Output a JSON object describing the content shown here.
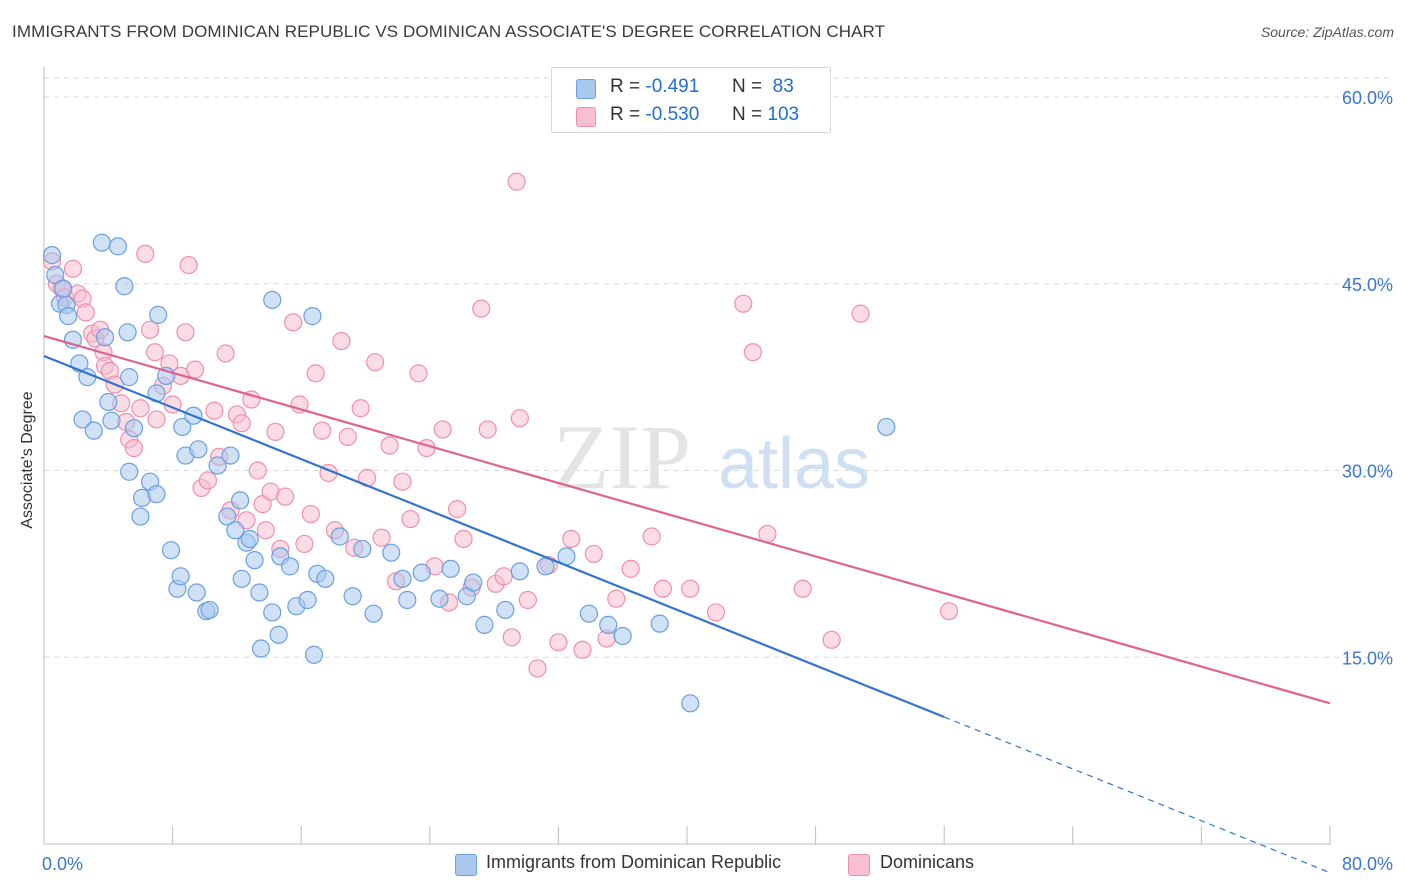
{
  "title": "IMMIGRANTS FROM DOMINICAN REPUBLIC VS DOMINICAN ASSOCIATE'S DEGREE CORRELATION CHART",
  "source": "Source: ZipAtlas.com",
  "watermark": {
    "zip": "ZIP",
    "atlas": "atlas"
  },
  "colors": {
    "blue_fill": "#a9c8ee",
    "blue_stroke": "#6a9fe0",
    "blue_line": "#2f74d0",
    "pink_fill": "#f7bfd0",
    "pink_stroke": "#ef8fb0",
    "pink_line": "#e0638e",
    "axis_label": "#3b78cc",
    "grid": "#d8d8d8"
  },
  "legend": {
    "rows": [
      {
        "r_label": "R =",
        "r_value": "-0.491",
        "n_label": "N =",
        "n_value": "83"
      },
      {
        "r_label": "R =",
        "r_value": "-0.530",
        "n_label": "N =",
        "n_value": "103"
      }
    ]
  },
  "bottom_legend": [
    "Immigrants from Dominican Republic",
    "Dominicans"
  ],
  "chart_data": {
    "type": "scatter",
    "title": "IMMIGRANTS FROM DOMINICAN REPUBLIC VS DOMINICAN ASSOCIATE'S DEGREE CORRELATION CHART",
    "xlabel": "",
    "ylabel": "Associate's Degree",
    "xlim": [
      0,
      80
    ],
    "ylim": [
      0,
      60
    ],
    "x_tick_labels": [
      "0.0%",
      "80.0%"
    ],
    "y_ticks": [
      15,
      30,
      45,
      60
    ],
    "y_tick_labels": [
      "15.0%",
      "30.0%",
      "45.0%",
      "60.0%"
    ],
    "grid": true,
    "legend_position": "top-center",
    "series": [
      {
        "name": "Immigrants from Dominican Republic",
        "color": "#a9c8ee",
        "r": -0.491,
        "n": 83,
        "trend": {
          "x0": 0,
          "y0": 39.2,
          "x1": 56,
          "y1": 10.2,
          "dash_to_x": 80,
          "dash_to_y": -2.3
        },
        "points": [
          [
            0.5,
            47.3
          ],
          [
            0.7,
            45.7
          ],
          [
            1.0,
            43.4
          ],
          [
            1.2,
            44.6
          ],
          [
            1.4,
            43.3
          ],
          [
            1.5,
            42.4
          ],
          [
            1.8,
            40.5
          ],
          [
            2.2,
            38.6
          ],
          [
            2.7,
            37.5
          ],
          [
            2.4,
            34.1
          ],
          [
            3.1,
            33.2
          ],
          [
            3.6,
            48.3
          ],
          [
            3.8,
            40.7
          ],
          [
            4.0,
            35.5
          ],
          [
            4.2,
            34.0
          ],
          [
            4.6,
            48.0
          ],
          [
            5.0,
            44.8
          ],
          [
            5.2,
            41.1
          ],
          [
            5.3,
            37.5
          ],
          [
            5.6,
            33.4
          ],
          [
            5.3,
            29.9
          ],
          [
            6.0,
            26.3
          ],
          [
            6.1,
            27.8
          ],
          [
            6.6,
            29.1
          ],
          [
            7.1,
            42.5
          ],
          [
            7.0,
            36.2
          ],
          [
            7.0,
            28.1
          ],
          [
            7.6,
            37.6
          ],
          [
            7.9,
            23.6
          ],
          [
            8.3,
            20.5
          ],
          [
            8.6,
            33.5
          ],
          [
            8.5,
            21.5
          ],
          [
            8.8,
            31.2
          ],
          [
            9.3,
            34.4
          ],
          [
            9.6,
            31.7
          ],
          [
            9.5,
            20.2
          ],
          [
            10.1,
            18.7
          ],
          [
            10.3,
            18.8
          ],
          [
            10.8,
            30.4
          ],
          [
            11.4,
            26.3
          ],
          [
            11.6,
            31.2
          ],
          [
            11.9,
            25.2
          ],
          [
            12.2,
            27.6
          ],
          [
            12.6,
            24.2
          ],
          [
            12.3,
            21.3
          ],
          [
            12.8,
            24.5
          ],
          [
            13.1,
            22.8
          ],
          [
            13.4,
            20.2
          ],
          [
            13.5,
            15.7
          ],
          [
            14.2,
            18.6
          ],
          [
            14.6,
            16.8
          ],
          [
            14.7,
            23.1
          ],
          [
            15.3,
            22.3
          ],
          [
            15.7,
            19.1
          ],
          [
            16.4,
            19.6
          ],
          [
            16.8,
            15.2
          ],
          [
            17.0,
            21.7
          ],
          [
            17.5,
            21.3
          ],
          [
            18.4,
            24.7
          ],
          [
            19.2,
            19.9
          ],
          [
            19.8,
            23.7
          ],
          [
            20.5,
            18.5
          ],
          [
            21.6,
            23.4
          ],
          [
            22.3,
            21.3
          ],
          [
            22.6,
            19.6
          ],
          [
            23.5,
            21.8
          ],
          [
            24.6,
            19.7
          ],
          [
            25.3,
            22.1
          ],
          [
            26.3,
            19.9
          ],
          [
            26.7,
            21.0
          ],
          [
            27.4,
            17.6
          ],
          [
            28.7,
            18.8
          ],
          [
            29.6,
            21.9
          ],
          [
            31.2,
            22.3
          ],
          [
            32.5,
            23.1
          ],
          [
            33.9,
            18.5
          ],
          [
            35.1,
            17.6
          ],
          [
            36.0,
            16.7
          ],
          [
            38.3,
            17.7
          ],
          [
            40.2,
            11.3
          ],
          [
            52.4,
            33.5
          ],
          [
            16.7,
            42.4
          ],
          [
            14.2,
            43.7
          ]
        ]
      },
      {
        "name": "Dominicans",
        "color": "#f7bfd0",
        "r": -0.53,
        "n": 103,
        "trend": {
          "x0": 0,
          "y0": 40.8,
          "x1": 80,
          "y1": 11.3
        },
        "points": [
          [
            0.5,
            46.8
          ],
          [
            0.8,
            45.0
          ],
          [
            1.1,
            44.6
          ],
          [
            1.3,
            43.9
          ],
          [
            1.8,
            46.2
          ],
          [
            2.1,
            44.2
          ],
          [
            2.4,
            43.8
          ],
          [
            2.6,
            42.7
          ],
          [
            3.0,
            41.0
          ],
          [
            3.2,
            40.6
          ],
          [
            3.5,
            41.3
          ],
          [
            3.7,
            39.5
          ],
          [
            3.8,
            38.4
          ],
          [
            4.1,
            38.0
          ],
          [
            4.4,
            36.9
          ],
          [
            4.8,
            35.4
          ],
          [
            5.1,
            33.9
          ],
          [
            5.3,
            32.5
          ],
          [
            5.6,
            31.8
          ],
          [
            6.0,
            35.0
          ],
          [
            6.3,
            47.4
          ],
          [
            6.6,
            41.3
          ],
          [
            6.9,
            39.5
          ],
          [
            7.0,
            34.1
          ],
          [
            7.4,
            36.8
          ],
          [
            7.8,
            38.6
          ],
          [
            8.0,
            35.3
          ],
          [
            8.5,
            37.6
          ],
          [
            8.8,
            41.1
          ],
          [
            9.0,
            46.5
          ],
          [
            9.4,
            38.1
          ],
          [
            9.8,
            28.6
          ],
          [
            10.2,
            29.2
          ],
          [
            10.6,
            34.8
          ],
          [
            10.9,
            31.1
          ],
          [
            11.3,
            39.4
          ],
          [
            11.6,
            26.8
          ],
          [
            12.0,
            34.5
          ],
          [
            12.3,
            33.8
          ],
          [
            12.6,
            26.0
          ],
          [
            12.9,
            35.7
          ],
          [
            13.3,
            30.0
          ],
          [
            13.6,
            27.3
          ],
          [
            13.8,
            25.2
          ],
          [
            14.1,
            28.3
          ],
          [
            14.4,
            33.1
          ],
          [
            14.7,
            23.7
          ],
          [
            15.0,
            27.9
          ],
          [
            15.5,
            41.9
          ],
          [
            15.9,
            35.3
          ],
          [
            16.2,
            24.1
          ],
          [
            16.6,
            26.5
          ],
          [
            16.9,
            37.8
          ],
          [
            17.3,
            33.2
          ],
          [
            17.7,
            29.8
          ],
          [
            18.1,
            25.2
          ],
          [
            18.5,
            40.4
          ],
          [
            18.9,
            32.7
          ],
          [
            19.3,
            23.8
          ],
          [
            19.7,
            35.0
          ],
          [
            20.1,
            29.4
          ],
          [
            20.6,
            38.7
          ],
          [
            21.0,
            24.6
          ],
          [
            21.5,
            32.0
          ],
          [
            21.9,
            21.1
          ],
          [
            22.3,
            29.1
          ],
          [
            22.8,
            26.1
          ],
          [
            23.3,
            37.8
          ],
          [
            23.8,
            31.8
          ],
          [
            24.3,
            22.3
          ],
          [
            24.8,
            33.3
          ],
          [
            25.2,
            19.4
          ],
          [
            25.7,
            26.9
          ],
          [
            26.1,
            24.5
          ],
          [
            26.6,
            20.6
          ],
          [
            27.2,
            43.0
          ],
          [
            27.6,
            33.3
          ],
          [
            28.1,
            20.9
          ],
          [
            28.6,
            21.5
          ],
          [
            29.1,
            16.6
          ],
          [
            29.6,
            34.2
          ],
          [
            30.1,
            19.6
          ],
          [
            30.7,
            14.1
          ],
          [
            31.4,
            22.4
          ],
          [
            32.0,
            16.2
          ],
          [
            32.8,
            24.5
          ],
          [
            33.5,
            15.6
          ],
          [
            34.2,
            23.3
          ],
          [
            35.0,
            16.5
          ],
          [
            35.6,
            19.7
          ],
          [
            36.5,
            22.1
          ],
          [
            37.8,
            24.7
          ],
          [
            38.5,
            20.5
          ],
          [
            40.2,
            20.5
          ],
          [
            41.8,
            18.6
          ],
          [
            43.5,
            43.4
          ],
          [
            44.1,
            39.5
          ],
          [
            45.0,
            24.9
          ],
          [
            47.2,
            20.5
          ],
          [
            49.0,
            16.4
          ],
          [
            50.8,
            42.6
          ],
          [
            56.3,
            18.7
          ],
          [
            29.4,
            53.2
          ]
        ]
      }
    ]
  }
}
